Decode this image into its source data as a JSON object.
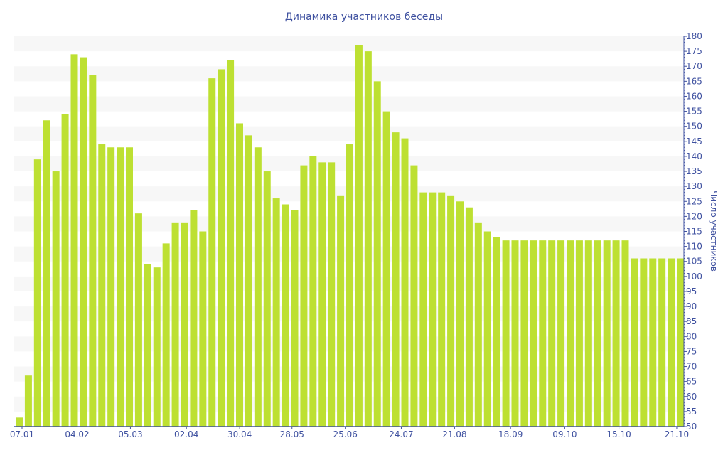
{
  "chart_data": {
    "type": "bar",
    "title": "Динамика участников беседы",
    "ylabel": "Число участников",
    "xlabel": "",
    "ylim": [
      50,
      180
    ],
    "y_tick_step": 5,
    "y_axis_side": "right",
    "grid": "alternating horizontal bands",
    "bar_color": "#bde032",
    "axis_color": "#3f51a0",
    "band_color": "#f7f7f7",
    "values": [
      53,
      67,
      139,
      152,
      135,
      154,
      174,
      173,
      167,
      144,
      143,
      143,
      143,
      121,
      104,
      103,
      111,
      118,
      118,
      122,
      115,
      166,
      169,
      172,
      151,
      147,
      143,
      135,
      126,
      124,
      122,
      137,
      140,
      138,
      138,
      127,
      144,
      177,
      175,
      165,
      155,
      148,
      146,
      137,
      128,
      128,
      128,
      127,
      125,
      123,
      118,
      115,
      113,
      112,
      112,
      112,
      112,
      112,
      112,
      112,
      112,
      112,
      112,
      112,
      112,
      112,
      112,
      106,
      106,
      106,
      106,
      106,
      106
    ],
    "x_ticks": [
      {
        "label": "07.01",
        "index": 0
      },
      {
        "label": "04.02",
        "index": 6
      },
      {
        "label": "05.03",
        "index": 11.8
      },
      {
        "label": "02.04",
        "index": 17.9
      },
      {
        "label": "30.04",
        "index": 23.7
      },
      {
        "label": "28.05",
        "index": 29.4
      },
      {
        "label": "25.06",
        "index": 35.2
      },
      {
        "label": "24.07",
        "index": 41.3
      },
      {
        "label": "21.08",
        "index": 47.1
      },
      {
        "label": "18.09",
        "index": 53.2
      },
      {
        "label": "09.10",
        "index": 59.1
      },
      {
        "label": "15.10",
        "index": 65
      },
      {
        "label": "21.10",
        "index": 71.3
      }
    ]
  }
}
